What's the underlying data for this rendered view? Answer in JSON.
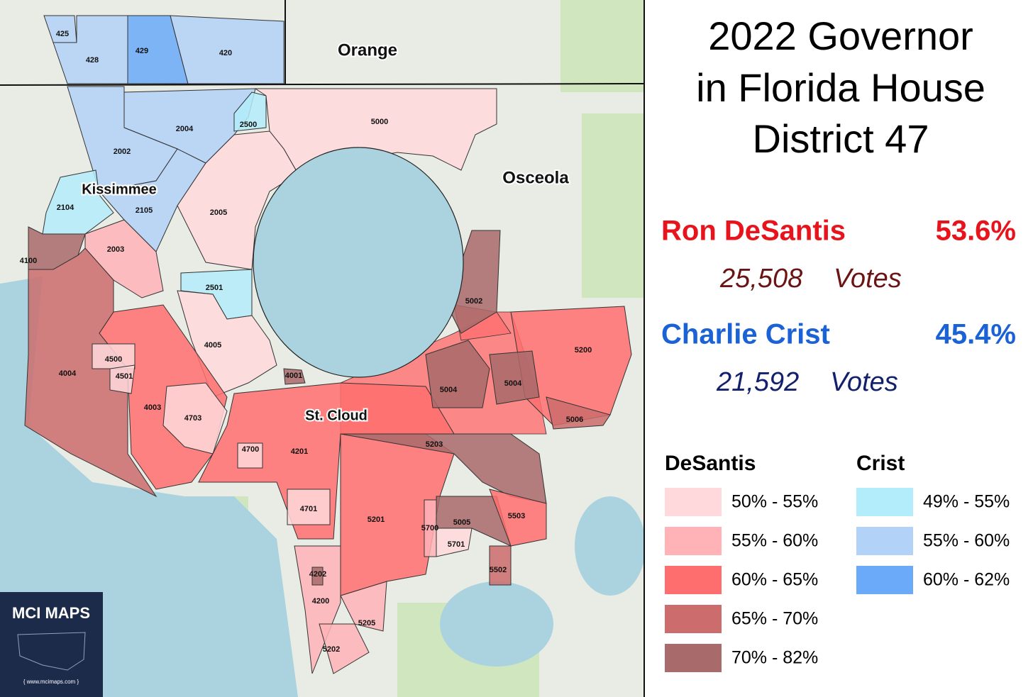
{
  "title_lines": [
    "2022 Governor",
    "in Florida House",
    "District 47"
  ],
  "candidates": [
    {
      "name": "Ron DeSantis",
      "percent": "53.6%",
      "votes": "25,508",
      "votes_word": "Votes",
      "color": "#e8141c",
      "votes_color": "#6b1414"
    },
    {
      "name": "Charlie Crist",
      "percent": "45.4%",
      "votes": "21,592",
      "votes_word": "Votes",
      "color": "#1a62d6",
      "votes_color": "#13206b"
    }
  ],
  "legend": [
    {
      "name": "DeSantis",
      "bins": [
        {
          "label": "50% - 55%",
          "color": "#ffd9dc"
        },
        {
          "label": "55% - 60%",
          "color": "#ffb3b7"
        },
        {
          "label": "60% - 65%",
          "color": "#ff6e6e"
        },
        {
          "label": "65% - 70%",
          "color": "#cc6c6c"
        },
        {
          "label": "70% - 82%",
          "color": "#a86a6a"
        }
      ]
    },
    {
      "name": "Crist",
      "bins": [
        {
          "label": "49% - 55%",
          "color": "#b3ecfa"
        },
        {
          "label": "55% - 60%",
          "color": "#b3d2f8"
        },
        {
          "label": "60% - 62%",
          "color": "#6aaaf8"
        }
      ]
    }
  ],
  "places": [
    "Orange",
    "Osceola",
    "Kissimmee",
    "St. Cloud"
  ],
  "precincts": [
    {
      "label": "425",
      "color": "#b3d2f8"
    },
    {
      "label": "428",
      "color": "#b3d2f8"
    },
    {
      "label": "429",
      "color": "#6aaaf8"
    },
    {
      "label": "420",
      "color": "#b3d2f8"
    },
    {
      "label": "2004",
      "color": "#b3d2f8"
    },
    {
      "label": "2002",
      "color": "#b3d2f8"
    },
    {
      "label": "2105",
      "color": "#b3d2f8"
    },
    {
      "label": "2104",
      "color": "#b3ecfa"
    },
    {
      "label": "2500",
      "color": "#b3ecfa"
    },
    {
      "label": "5000",
      "color": "#ffd9dc"
    },
    {
      "label": "2005",
      "color": "#ffd9dc"
    },
    {
      "label": "2003",
      "color": "#ffb3b7"
    },
    {
      "label": "2501",
      "color": "#b3ecfa"
    },
    {
      "label": "4005",
      "color": "#ffd9dc"
    },
    {
      "label": "4100",
      "color": "#a86a6a"
    },
    {
      "label": "4004",
      "color": "#cc6c6c"
    },
    {
      "label": "4003",
      "color": "#ff6e6e"
    },
    {
      "label": "4500",
      "color": "#ffd9dc"
    },
    {
      "label": "4501",
      "color": "#ffd9dc"
    },
    {
      "label": "4703",
      "color": "#ffd9dc"
    },
    {
      "label": "4201",
      "color": "#ff6e6e"
    },
    {
      "label": "4001",
      "color": "#a86a6a"
    },
    {
      "label": "4700",
      "color": "#ffd9dc"
    },
    {
      "label": "4701",
      "color": "#ffd9dc"
    },
    {
      "label": "4200",
      "color": "#ffb3b7"
    },
    {
      "label": "4202",
      "color": "#a86a6a"
    },
    {
      "label": "5205",
      "color": "#ffb3b7"
    },
    {
      "label": "5202",
      "color": "#ffb3b7"
    },
    {
      "label": "5201",
      "color": "#ff6e6e"
    },
    {
      "label": "5203",
      "color": "#a86a6a"
    },
    {
      "label": "5700",
      "color": "#ffb3b7"
    },
    {
      "label": "5701",
      "color": "#ffd9dc"
    },
    {
      "label": "5005",
      "color": "#a86a6a"
    },
    {
      "label": "5503",
      "color": "#ff6e6e"
    },
    {
      "label": "5502",
      "color": "#cc6c6c"
    },
    {
      "label": "5002",
      "color": "#a86a6a"
    },
    {
      "label": "5200",
      "color": "#ff6e6e"
    },
    {
      "label": "5004",
      "color": "#a86a6a"
    },
    {
      "label": "5004",
      "color": "#a86a6a"
    },
    {
      "label": "5006",
      "color": "#cc6c6c"
    }
  ],
  "brand": "MCI MAPS",
  "url": "{ www.mcimaps.com }"
}
